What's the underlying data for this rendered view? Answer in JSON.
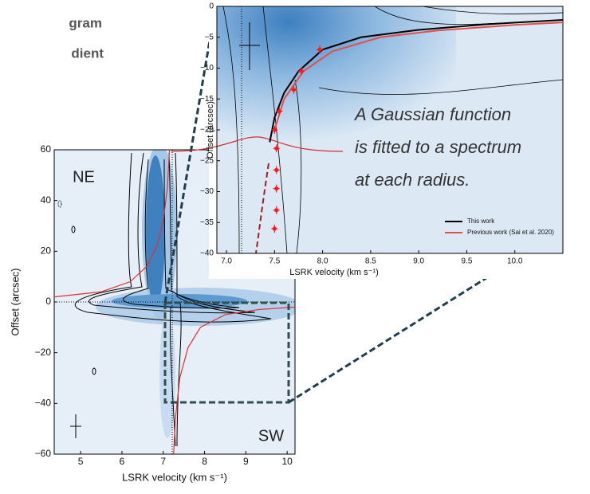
{
  "header": {
    "title_lines": [
      "gram",
      "dient"
    ]
  },
  "annotation": {
    "lines": [
      "A Gaussian function",
      "is fitted to a spectrum",
      "at each radius."
    ]
  },
  "chart_data": [
    {
      "type": "line",
      "xlabel": "LSRK velocity (km s⁻¹)",
      "ylabel": "Offset (arcsec)",
      "xlim": [
        4.36,
        10.19
      ],
      "ylim": [
        -60,
        60
      ],
      "xticks": [
        5,
        6,
        7,
        8,
        9,
        10
      ],
      "yticks": [
        {
          "value": -60,
          "label": "−60"
        },
        {
          "value": -40,
          "label": "−40"
        },
        {
          "value": -20,
          "label": "−20"
        },
        0,
        20,
        40,
        60
      ],
      "labels": [
        "NE",
        "SW"
      ],
      "series": [
        {
          "color": "#e03030",
          "x": [
            4.36,
            5.5,
            6.2,
            6.6,
            6.85,
            7.0,
            7.1,
            7.15,
            null,
            7.25,
            7.3,
            7.4,
            7.6,
            7.9,
            8.5,
            9.3,
            10.19
          ],
          "values": [
            2,
            4,
            8,
            14,
            22,
            32,
            45,
            60,
            null,
            -60,
            -45,
            -30,
            -18,
            -10,
            -5,
            -3,
            -2
          ]
        }
      ]
    },
    {
      "type": "line",
      "xlabel": "LSRK velocity (km s⁻¹)",
      "ylabel": "Offset (arcsec)",
      "xlim": [
        6.9,
        10.5
      ],
      "ylim": [
        -40,
        0
      ],
      "legend": "lower right",
      "xticks": [
        {
          "value": 7,
          "label": "7.0"
        },
        {
          "value": 7.5,
          "label": "7.5"
        },
        {
          "value": 8,
          "label": "8.0"
        },
        {
          "value": 8.5,
          "label": "8.5"
        },
        {
          "value": 9,
          "label": "9.0"
        },
        {
          "value": 9.5,
          "label": "9.5"
        },
        {
          "value": 10,
          "label": "10.0"
        }
      ],
      "yticks": [
        {
          "value": -40,
          "label": "−40"
        },
        {
          "value": -35,
          "label": "−35"
        },
        {
          "value": -30,
          "label": "−30"
        },
        {
          "value": -25,
          "label": "−25"
        },
        {
          "value": -20,
          "label": "−20"
        },
        {
          "value": -15,
          "label": "−15"
        },
        {
          "value": -10,
          "label": "−10"
        },
        {
          "value": -5,
          "label": "−5"
        },
        0
      ],
      "series": [
        {
          "name": "This work",
          "color": "#000000",
          "x": [
            7.45,
            7.5,
            7.6,
            7.75,
            8.0,
            8.4,
            9.0,
            9.7,
            10.5
          ],
          "values": [
            -22,
            -18,
            -14,
            -10.5,
            -7,
            -5,
            -3.8,
            -2.9,
            -2.2
          ]
        },
        {
          "name": "Previous work (Sai et al. 2020)",
          "color": "#e05050",
          "x": [
            7.5,
            7.6,
            7.8,
            8.1,
            8.6,
            9.2,
            10.0,
            10.5
          ],
          "values": [
            -20,
            -15,
            -10.5,
            -7.3,
            -5,
            -3.9,
            -3.0,
            -2.6
          ]
        }
      ],
      "points": {
        "color": "#ff1a1a",
        "x": [
          7.5,
          7.55,
          7.7,
          7.78,
          7.97,
          7.52,
          7.52,
          7.52,
          7.52,
          7.5
        ],
        "values": [
          -20,
          -17,
          -13.5,
          -10.5,
          -7,
          -23,
          -26.5,
          -29.5,
          -33,
          -36
        ]
      }
    }
  ]
}
